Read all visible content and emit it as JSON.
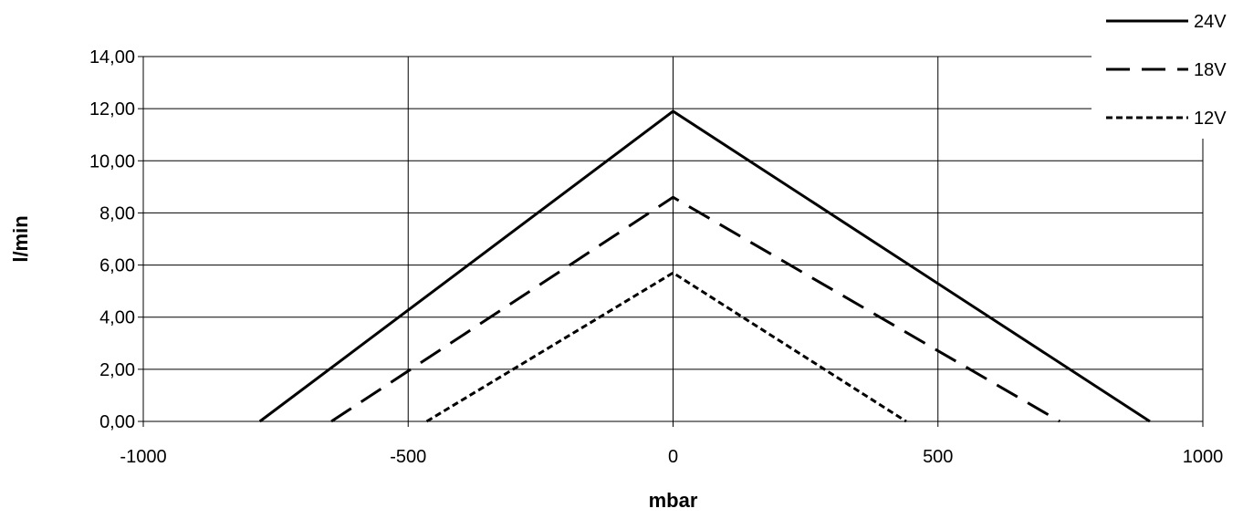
{
  "chart_data": {
    "type": "line",
    "xlabel": "mbar",
    "ylabel": "l/min",
    "xlim": [
      -1000,
      1000
    ],
    "ylim": [
      0,
      14
    ],
    "x_ticks": [
      "-1000",
      "-500",
      "0",
      "500",
      "1000"
    ],
    "x_tick_values": [
      -1000,
      -500,
      0,
      500,
      1000
    ],
    "y_ticks": [
      "0,00",
      "2,00",
      "4,00",
      "6,00",
      "8,00",
      "10,00",
      "12,00",
      "14,00"
    ],
    "y_tick_values": [
      0,
      2,
      4,
      6,
      8,
      10,
      12,
      14
    ],
    "grid": true,
    "legend_position": "top-right",
    "series": [
      {
        "name": "24V",
        "style": "solid",
        "x": [
          -780,
          0,
          900
        ],
        "y": [
          0,
          11.9,
          0
        ]
      },
      {
        "name": "18V",
        "style": "dashed",
        "x": [
          -645,
          0,
          730
        ],
        "y": [
          0,
          8.6,
          0
        ]
      },
      {
        "name": "12V",
        "style": "dotted",
        "x": [
          -465,
          0,
          440
        ],
        "y": [
          0,
          5.7,
          0
        ]
      }
    ],
    "line_color": "#000000"
  }
}
